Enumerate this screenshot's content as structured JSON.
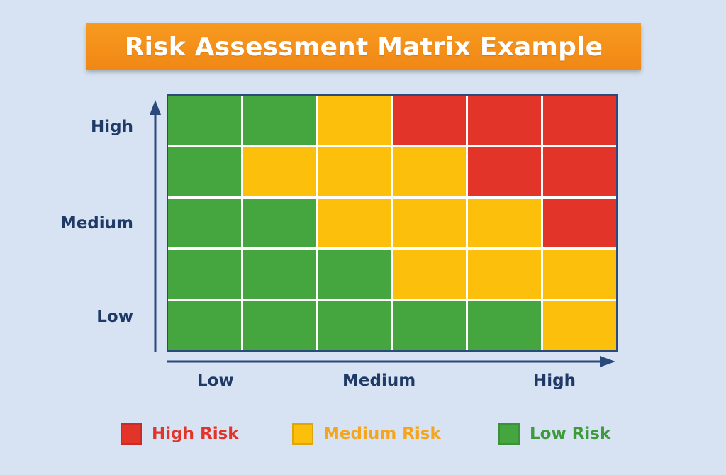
{
  "title": "Risk Assessment Matrix Example",
  "colors": {
    "high": "#e3342a",
    "medium": "#fbbf0c",
    "low": "#45a640",
    "axis": "#2b4a7c",
    "title_bg": "#f18716"
  },
  "y_axis": {
    "labels": [
      "High",
      "Medium",
      "Low"
    ]
  },
  "x_axis": {
    "labels": [
      "Low",
      "Medium",
      "High"
    ]
  },
  "matrix": {
    "rows": [
      [
        "low",
        "low",
        "medium",
        "high",
        "high",
        "high"
      ],
      [
        "low",
        "medium",
        "medium",
        "medium",
        "high",
        "high"
      ],
      [
        "low",
        "low",
        "medium",
        "medium",
        "medium",
        "high"
      ],
      [
        "low",
        "low",
        "low",
        "medium",
        "medium",
        "medium"
      ],
      [
        "low",
        "low",
        "low",
        "low",
        "low",
        "medium"
      ]
    ]
  },
  "legend": [
    {
      "key": "high",
      "label": "High Risk",
      "color": "#e3342a",
      "text_color": "#e3342a"
    },
    {
      "key": "medium",
      "label": "Medium Risk",
      "color": "#fbbf0c",
      "text_color": "#f5a51c"
    },
    {
      "key": "low",
      "label": "Low Risk",
      "color": "#45a640",
      "text_color": "#3e9a3a"
    }
  ]
}
